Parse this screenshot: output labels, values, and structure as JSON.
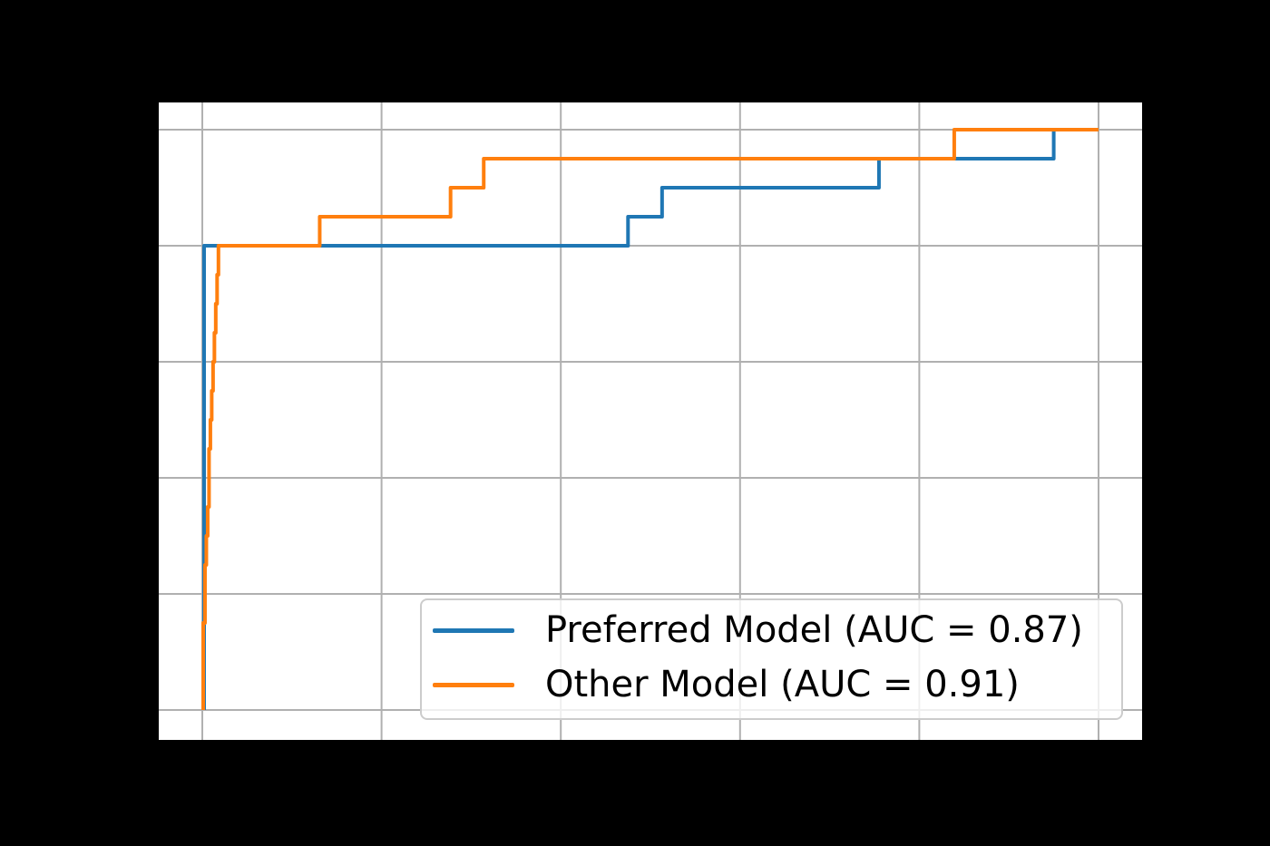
{
  "figure": {
    "background_color": "#000000",
    "plot_background_color": "#ffffff",
    "grid_color": "#b0b0b0"
  },
  "chart_data": {
    "type": "line",
    "subtype": "roc-step-curves",
    "title": "",
    "xlabel": "",
    "ylabel": "",
    "grid": true,
    "legend_position": "lower right",
    "tick_labels_visible": false,
    "xlim": [
      -0.0486,
      1.0486
    ],
    "ylim": [
      -0.0516,
      1.0469
    ],
    "xticks": [
      0.0,
      0.2,
      0.4,
      0.6,
      0.8,
      1.0
    ],
    "yticks": [
      0.0,
      0.2,
      0.4,
      0.6,
      0.8,
      1.0
    ],
    "series": [
      {
        "name": "Preferred Model (AUC = 0.87)",
        "auc": 0.87,
        "color": "#1f77b4",
        "linewidth": 4,
        "points": [
          [
            0.002,
            0.0
          ],
          [
            0.002,
            0.8
          ],
          [
            0.475,
            0.8
          ],
          [
            0.475,
            0.85
          ],
          [
            0.513,
            0.85
          ],
          [
            0.513,
            0.9
          ],
          [
            0.755,
            0.9
          ],
          [
            0.755,
            0.95
          ],
          [
            0.95,
            0.95
          ],
          [
            0.95,
            1.0
          ],
          [
            1.0,
            1.0
          ]
        ]
      },
      {
        "name": "Other Model (AUC = 0.91)",
        "auc": 0.91,
        "color": "#ff7f0e",
        "linewidth": 4,
        "points": [
          [
            0.001,
            0.0
          ],
          [
            0.001,
            0.15
          ],
          [
            0.003,
            0.15
          ],
          [
            0.003,
            0.25
          ],
          [
            0.0045,
            0.25
          ],
          [
            0.0045,
            0.3
          ],
          [
            0.006,
            0.3
          ],
          [
            0.006,
            0.35
          ],
          [
            0.0075,
            0.35
          ],
          [
            0.0075,
            0.45
          ],
          [
            0.009,
            0.45
          ],
          [
            0.009,
            0.5
          ],
          [
            0.0105,
            0.5
          ],
          [
            0.0105,
            0.55
          ],
          [
            0.012,
            0.55
          ],
          [
            0.012,
            0.6
          ],
          [
            0.0135,
            0.6
          ],
          [
            0.0135,
            0.65
          ],
          [
            0.015,
            0.65
          ],
          [
            0.015,
            0.7
          ],
          [
            0.0165,
            0.7
          ],
          [
            0.0165,
            0.75
          ],
          [
            0.018,
            0.75
          ],
          [
            0.018,
            0.8
          ],
          [
            0.131,
            0.8
          ],
          [
            0.131,
            0.85
          ],
          [
            0.277,
            0.85
          ],
          [
            0.277,
            0.9
          ],
          [
            0.314,
            0.9
          ],
          [
            0.314,
            0.95
          ],
          [
            0.839,
            0.95
          ],
          [
            0.839,
            1.0
          ],
          [
            1.0,
            1.0
          ]
        ]
      }
    ]
  },
  "legend": {
    "items": [
      {
        "label": "Preferred Model (AUC = 0.87)",
        "color": "#1f77b4"
      },
      {
        "label": "Other Model (AUC = 0.91)",
        "color": "#ff7f0e"
      }
    ]
  }
}
